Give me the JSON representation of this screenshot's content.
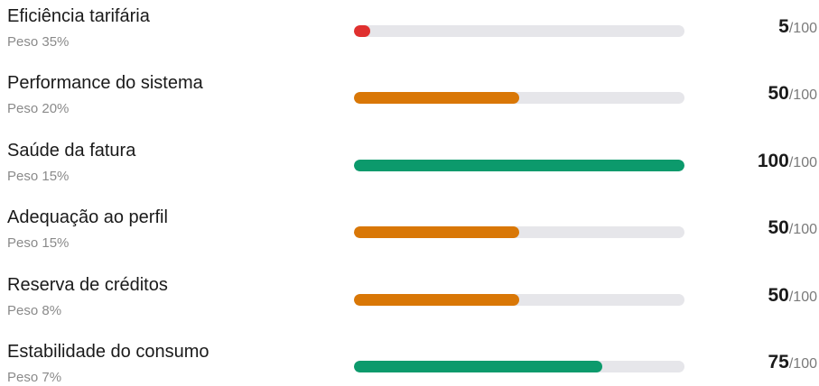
{
  "max": {
    "value": 100,
    "label": "/100"
  },
  "items": [
    {
      "label": "Eficiência tarifária",
      "weight": "Peso 35%",
      "score": 5,
      "color": "#e0302f"
    },
    {
      "label": "Performance do sistema",
      "weight": "Peso 20%",
      "score": 50,
      "color": "#d97706"
    },
    {
      "label": "Saúde da fatura",
      "weight": "Peso 15%",
      "score": 100,
      "color": "#0c9a6c"
    },
    {
      "label": "Adequação ao perfil",
      "weight": "Peso 15%",
      "score": 50,
      "color": "#d97706"
    },
    {
      "label": "Reserva de créditos",
      "weight": "Peso 8%",
      "score": 50,
      "color": "#d97706"
    },
    {
      "label": "Estabilidade do consumo",
      "weight": "Peso 7%",
      "score": 75,
      "color": "#0c9a6c"
    }
  ]
}
